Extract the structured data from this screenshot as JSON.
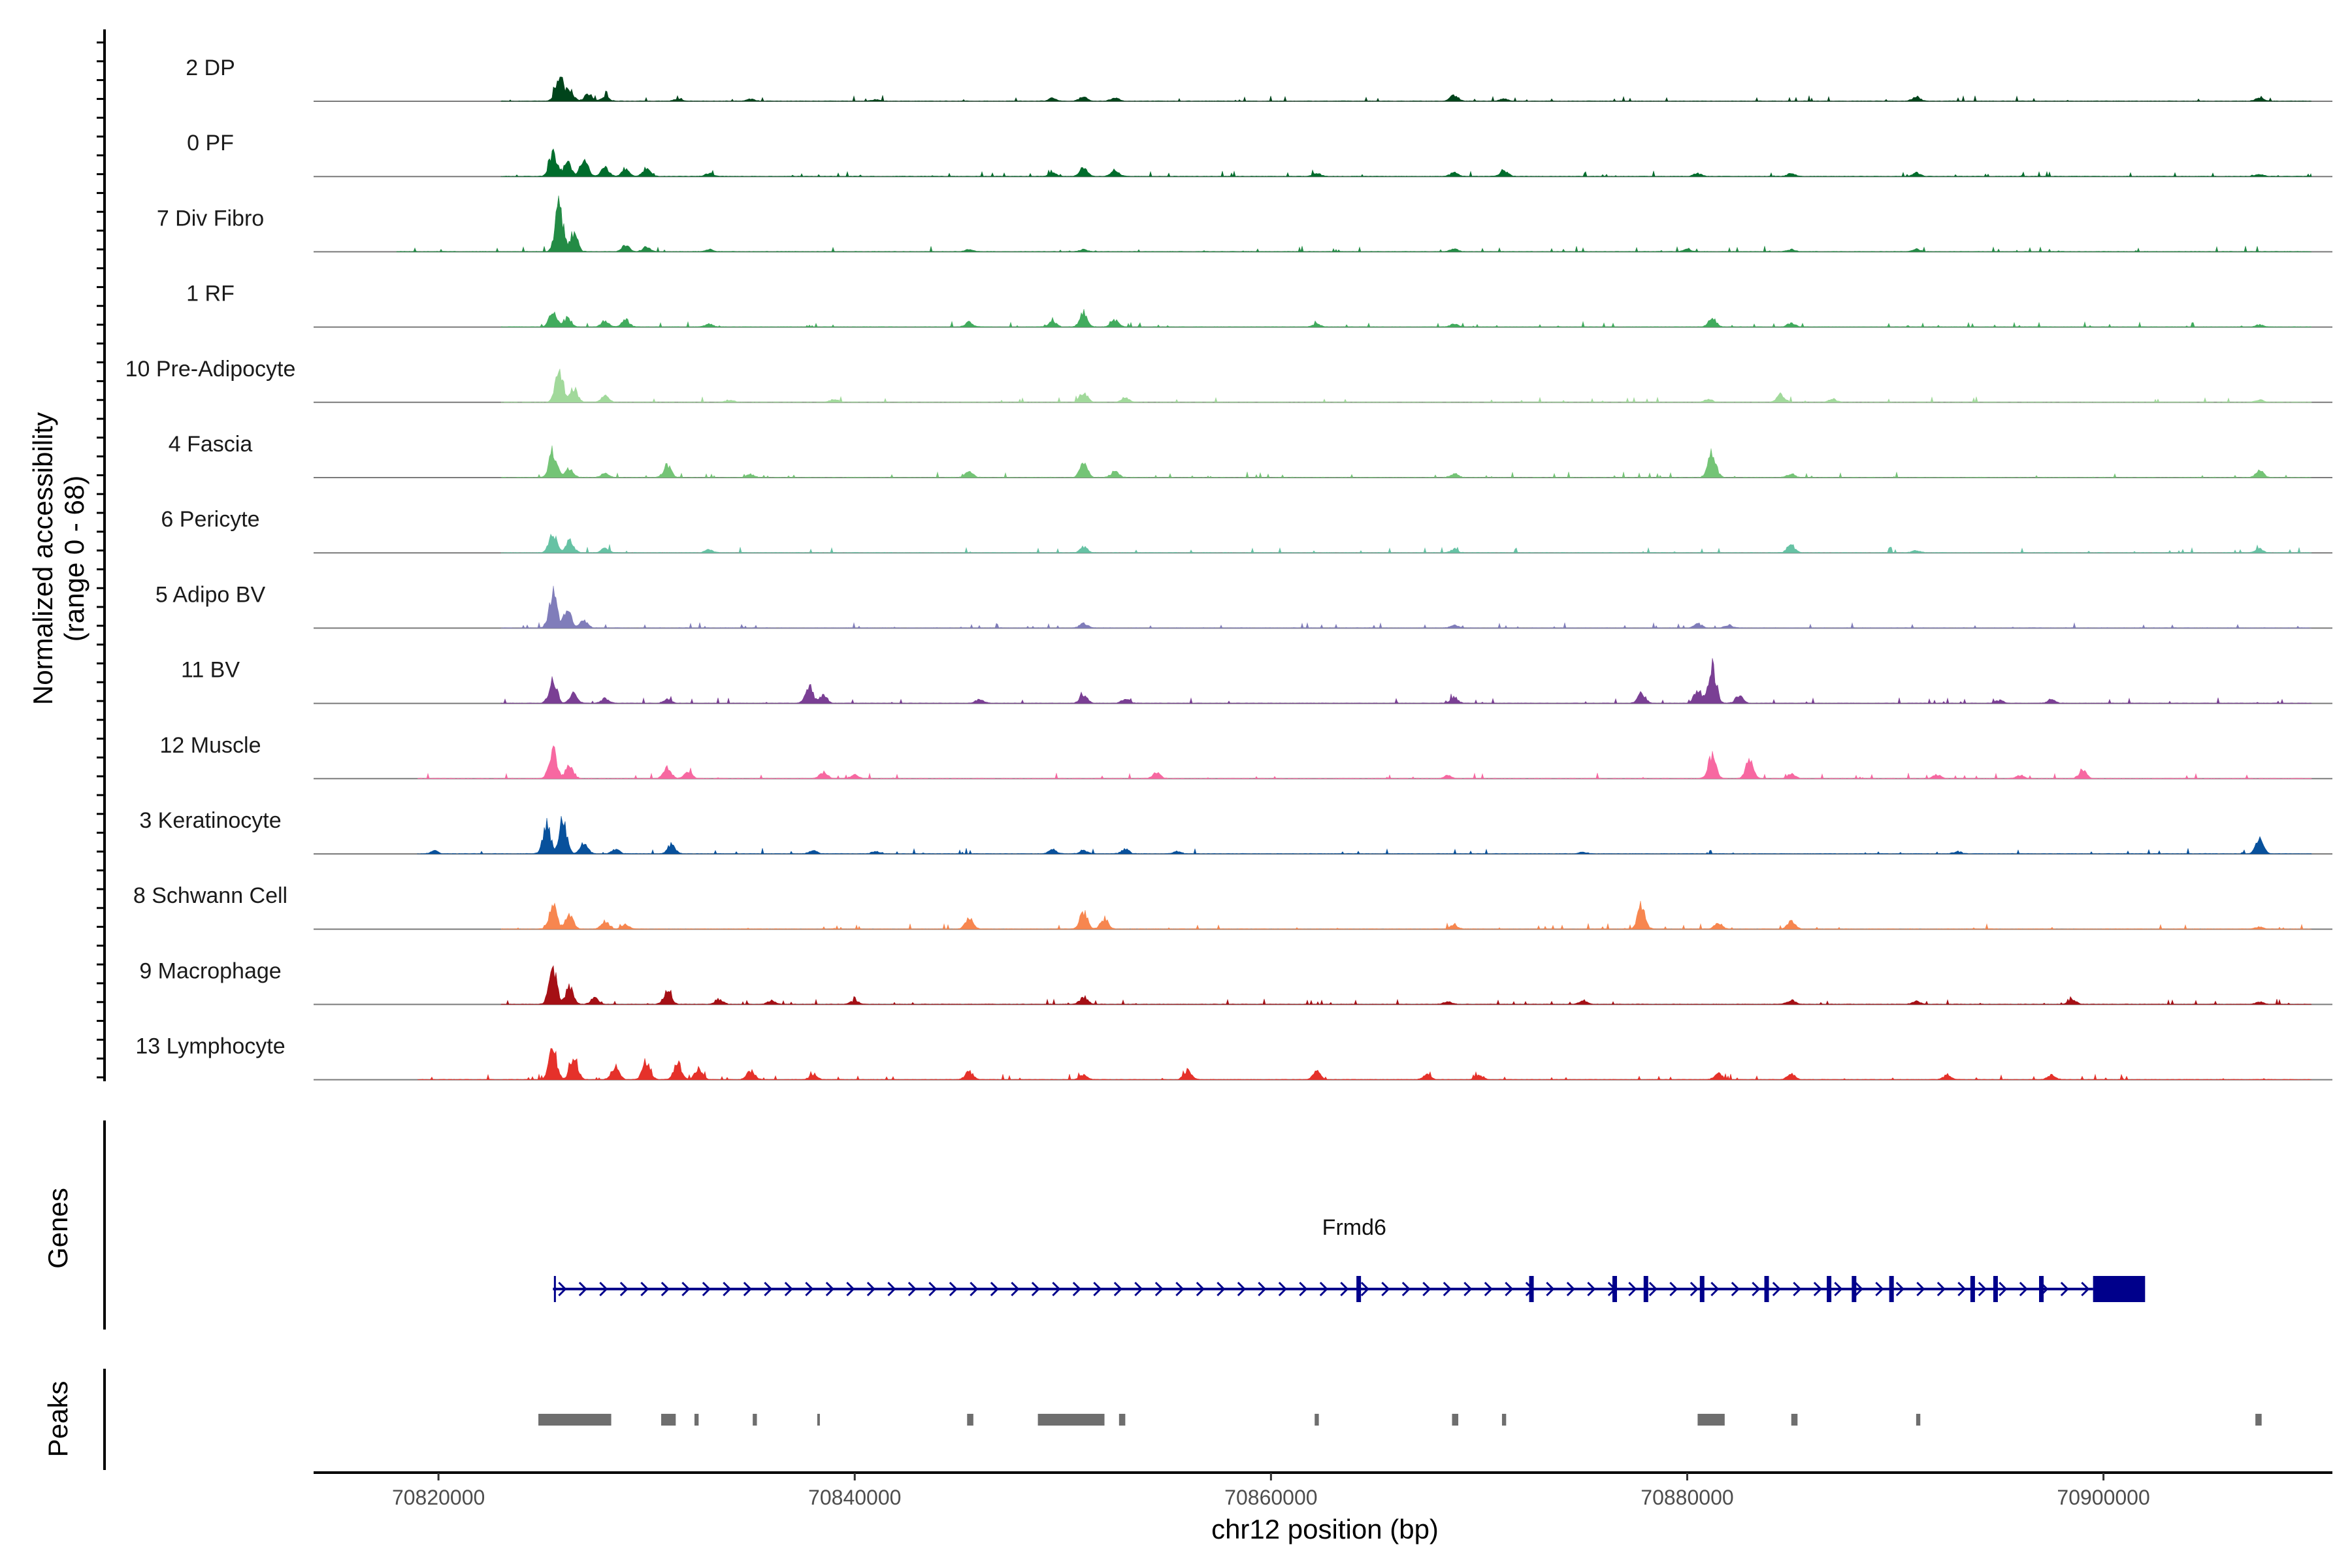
{
  "chart_data": {
    "type": "area",
    "title": "",
    "ylabel_line1": "Normalized accessibility",
    "ylabel_line2": "(range 0 - 68)",
    "y_range": [
      0,
      68
    ],
    "xlabel": "chr12 position (bp)",
    "xlim": [
      70814000,
      70911000
    ],
    "x_ticks": [
      70820000,
      70840000,
      70860000,
      70880000,
      70900000
    ],
    "x_tick_labels": [
      "70820000",
      "70840000",
      "70860000",
      "70880000",
      "70900000"
    ],
    "tracks": [
      {
        "name": "2 DP",
        "color": "#00441b",
        "start": 70823000,
        "end": 70910000,
        "peaks": [
          [
            70825800,
            34
          ],
          [
            70826300,
            14
          ],
          [
            70827200,
            9
          ],
          [
            70828000,
            6
          ],
          [
            70831500,
            3
          ],
          [
            70835000,
            3
          ],
          [
            70841000,
            2
          ],
          [
            70849500,
            4
          ],
          [
            70851000,
            6
          ],
          [
            70852500,
            5
          ],
          [
            70868800,
            8
          ],
          [
            70871200,
            3
          ],
          [
            70891000,
            6
          ],
          [
            70907500,
            4
          ]
        ]
      },
      {
        "name": "0 PF",
        "color": "#006d2c",
        "start": 70823000,
        "end": 70910000,
        "peaks": [
          [
            70825500,
            32
          ],
          [
            70826200,
            18
          ],
          [
            70827000,
            22
          ],
          [
            70828000,
            12
          ],
          [
            70829000,
            10
          ],
          [
            70830000,
            12
          ],
          [
            70833000,
            4
          ],
          [
            70849500,
            5
          ],
          [
            70851000,
            12
          ],
          [
            70852500,
            8
          ],
          [
            70862200,
            4
          ],
          [
            70868800,
            5
          ],
          [
            70871200,
            7
          ],
          [
            70880500,
            4
          ],
          [
            70885000,
            4
          ],
          [
            70891000,
            5
          ],
          [
            70907500,
            3
          ]
        ]
      },
      {
        "name": "7 Div Fibro",
        "color": "#238b45",
        "start": 70818000,
        "end": 70910000,
        "peaks": [
          [
            70825800,
            62
          ],
          [
            70826500,
            24
          ],
          [
            70829000,
            8
          ],
          [
            70830000,
            6
          ],
          [
            70833000,
            3
          ],
          [
            70845500,
            3
          ],
          [
            70851000,
            3
          ],
          [
            70868800,
            4
          ],
          [
            70880000,
            3
          ],
          [
            70885000,
            3
          ],
          [
            70891000,
            3
          ]
        ]
      },
      {
        "name": "1 RF",
        "color": "#41ab5d",
        "start": 70823000,
        "end": 70910000,
        "peaks": [
          [
            70825500,
            18
          ],
          [
            70826200,
            12
          ],
          [
            70828000,
            8
          ],
          [
            70829000,
            9
          ],
          [
            70833000,
            4
          ],
          [
            70845500,
            6
          ],
          [
            70849500,
            7
          ],
          [
            70851000,
            20
          ],
          [
            70852500,
            9
          ],
          [
            70862200,
            4
          ],
          [
            70868800,
            4
          ],
          [
            70881200,
            12
          ],
          [
            70885000,
            5
          ],
          [
            70907500,
            3
          ]
        ]
      },
      {
        "name": "10 Pre-Adipocyte",
        "color": "#a1d99b",
        "start": 70823000,
        "end": 70910000,
        "peaks": [
          [
            70825800,
            44
          ],
          [
            70826500,
            18
          ],
          [
            70828000,
            8
          ],
          [
            70834000,
            3
          ],
          [
            70839000,
            4
          ],
          [
            70851000,
            14
          ],
          [
            70853000,
            6
          ],
          [
            70881000,
            4
          ],
          [
            70884500,
            10
          ],
          [
            70887000,
            4
          ],
          [
            70907500,
            3
          ]
        ]
      },
      {
        "name": "4 Fascia",
        "color": "#74c476",
        "start": 70823000,
        "end": 70910000,
        "peaks": [
          [
            70825500,
            34
          ],
          [
            70826300,
            12
          ],
          [
            70828000,
            6
          ],
          [
            70831000,
            16
          ],
          [
            70835000,
            4
          ],
          [
            70845500,
            8
          ],
          [
            70851000,
            18
          ],
          [
            70852500,
            8
          ],
          [
            70868800,
            5
          ],
          [
            70881200,
            34
          ],
          [
            70885000,
            5
          ],
          [
            70907500,
            9
          ]
        ]
      },
      {
        "name": "6 Pericyte",
        "color": "#66c2a4",
        "start": 70823000,
        "end": 70910000,
        "peaks": [
          [
            70825500,
            24
          ],
          [
            70826300,
            18
          ],
          [
            70828000,
            6
          ],
          [
            70833000,
            4
          ],
          [
            70851000,
            8
          ],
          [
            70868800,
            4
          ],
          [
            70885000,
            10
          ],
          [
            70891000,
            3
          ],
          [
            70907500,
            5
          ]
        ]
      },
      {
        "name": "5 Adipo BV",
        "color": "#807dba",
        "start": 70823000,
        "end": 70910000,
        "peaks": [
          [
            70825500,
            48
          ],
          [
            70826200,
            22
          ],
          [
            70827000,
            10
          ],
          [
            70851000,
            6
          ],
          [
            70868800,
            4
          ],
          [
            70880500,
            6
          ],
          [
            70882000,
            4
          ]
        ]
      },
      {
        "name": "11 BV",
        "color": "#7a3f94",
        "start": 70823000,
        "end": 70910000,
        "peaks": [
          [
            70825500,
            30
          ],
          [
            70826500,
            12
          ],
          [
            70828000,
            6
          ],
          [
            70831000,
            5
          ],
          [
            70837800,
            22
          ],
          [
            70838500,
            10
          ],
          [
            70846000,
            6
          ],
          [
            70851000,
            10
          ],
          [
            70853000,
            6
          ],
          [
            70868800,
            8
          ],
          [
            70877800,
            14
          ],
          [
            70880500,
            18
          ],
          [
            70881200,
            48
          ],
          [
            70882500,
            10
          ],
          [
            70895000,
            4
          ],
          [
            70897500,
            5
          ]
        ]
      },
      {
        "name": "12 Muscle",
        "color": "#f768a1",
        "start": 70819000,
        "end": 70910000,
        "peaks": [
          [
            70825500,
            40
          ],
          [
            70826300,
            18
          ],
          [
            70831000,
            14
          ],
          [
            70832000,
            10
          ],
          [
            70838500,
            8
          ],
          [
            70840000,
            5
          ],
          [
            70854500,
            8
          ],
          [
            70868500,
            4
          ],
          [
            70881200,
            30
          ],
          [
            70883000,
            24
          ],
          [
            70885000,
            6
          ],
          [
            70892000,
            5
          ],
          [
            70899000,
            10
          ],
          [
            70896000,
            4
          ]
        ]
      },
      {
        "name": "3 Keratinocyte",
        "color": "#08519c",
        "start": 70819000,
        "end": 70910000,
        "peaks": [
          [
            70819800,
            4
          ],
          [
            70825200,
            38
          ],
          [
            70826000,
            40
          ],
          [
            70827000,
            14
          ],
          [
            70828500,
            6
          ],
          [
            70831200,
            12
          ],
          [
            70838000,
            4
          ],
          [
            70841000,
            3
          ],
          [
            70849500,
            6
          ],
          [
            70851000,
            4
          ],
          [
            70853000,
            6
          ],
          [
            70855500,
            3
          ],
          [
            70875000,
            2
          ],
          [
            70893000,
            3
          ],
          [
            70907500,
            18
          ]
        ]
      },
      {
        "name": "8 Schwann Cell",
        "color": "#f7864f",
        "start": 70823000,
        "end": 70910000,
        "peaks": [
          [
            70825500,
            30
          ],
          [
            70826300,
            20
          ],
          [
            70828000,
            10
          ],
          [
            70829000,
            6
          ],
          [
            70845500,
            16
          ],
          [
            70851000,
            22
          ],
          [
            70852000,
            14
          ],
          [
            70868800,
            5
          ],
          [
            70877800,
            30
          ],
          [
            70881500,
            8
          ],
          [
            70885000,
            10
          ],
          [
            70907500,
            3
          ]
        ]
      },
      {
        "name": "9 Macrophage",
        "color": "#a50f15",
        "start": 70823000,
        "end": 70910000,
        "peaks": [
          [
            70825500,
            50
          ],
          [
            70826300,
            22
          ],
          [
            70827500,
            8
          ],
          [
            70831000,
            16
          ],
          [
            70833500,
            7
          ],
          [
            70836000,
            5
          ],
          [
            70840000,
            5
          ],
          [
            70851000,
            10
          ],
          [
            70868500,
            4
          ],
          [
            70875000,
            5
          ],
          [
            70885000,
            6
          ],
          [
            70891000,
            4
          ],
          [
            70898500,
            7
          ],
          [
            70907500,
            3
          ]
        ]
      },
      {
        "name": "13 Lymphocyte",
        "color": "#e5312a",
        "start": 70819000,
        "end": 70910000,
        "peaks": [
          [
            70825500,
            40
          ],
          [
            70826500,
            30
          ],
          [
            70828500,
            18
          ],
          [
            70830000,
            26
          ],
          [
            70831500,
            22
          ],
          [
            70832500,
            14
          ],
          [
            70835000,
            12
          ],
          [
            70838000,
            6
          ],
          [
            70845500,
            10
          ],
          [
            70851000,
            6
          ],
          [
            70856000,
            12
          ],
          [
            70862200,
            10
          ],
          [
            70867500,
            6
          ],
          [
            70870000,
            6
          ],
          [
            70881500,
            8
          ],
          [
            70885000,
            7
          ],
          [
            70892500,
            6
          ],
          [
            70897500,
            6
          ]
        ]
      }
    ],
    "genes": {
      "title": "Genes",
      "name": "Frmd6",
      "strand": "+",
      "start": 70825500,
      "end": 70902000,
      "utr3_start": 70899500,
      "exons": [
        70864200,
        70872500,
        70876500,
        70878000,
        70880700,
        70883800,
        70886800,
        70888000,
        70889800,
        70893700,
        70894800,
        70897000
      ]
    },
    "peaks_track": {
      "title": "Peaks",
      "regions": [
        [
          70824800,
          70828300
        ],
        [
          70830700,
          70831400
        ],
        [
          70832300,
          70832500
        ],
        [
          70835100,
          70835300
        ],
        [
          70838200,
          70838300
        ],
        [
          70845400,
          70845700
        ],
        [
          70848800,
          70852000
        ],
        [
          70852700,
          70853000
        ],
        [
          70862100,
          70862300
        ],
        [
          70868700,
          70869000
        ],
        [
          70871100,
          70871300
        ],
        [
          70880500,
          70881800
        ],
        [
          70885000,
          70885300
        ],
        [
          70891000,
          70891200
        ],
        [
          70907300,
          70907600
        ]
      ]
    }
  }
}
